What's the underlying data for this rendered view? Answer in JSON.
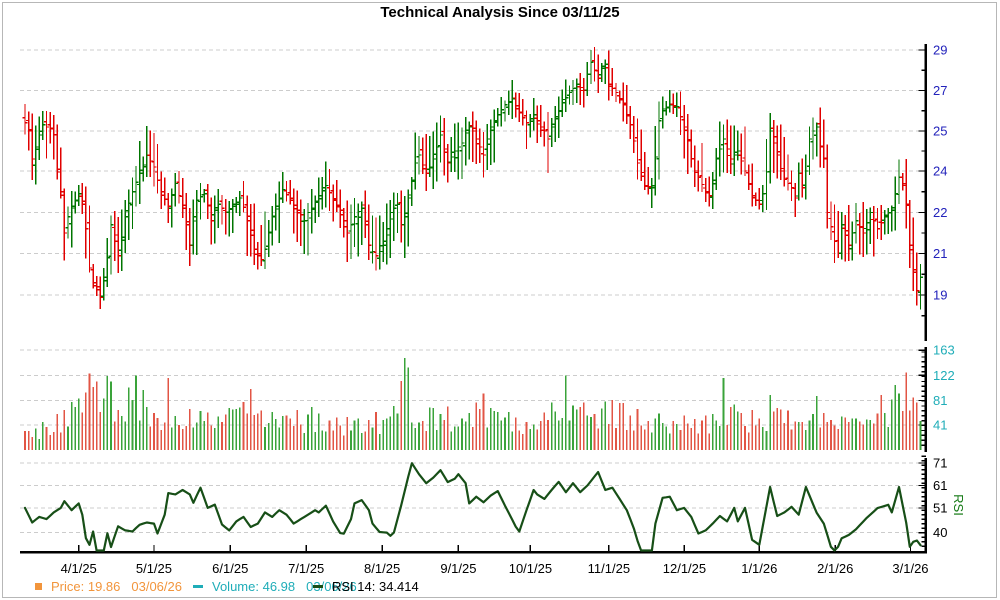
{
  "title": "Technical Analysis Since 03/11/25",
  "legend": {
    "price": {
      "text": "Price: 19.86",
      "date": "03/06/26"
    },
    "volume": {
      "text": "Volume: 46.98",
      "date": "03/06/26"
    },
    "rsi": {
      "text": "RSI 14: 34.414"
    }
  },
  "colors": {
    "price_up": "#007500",
    "price_down": "#e00000",
    "volume_up": "#3aa33a",
    "volume_down": "#e25545",
    "rsi_line": "#174f17",
    "price_axis_text": "#2222bb",
    "volume_axis_text": "#1fadb8",
    "rsi_axis_text": "#000000",
    "rsi_axis_title": "#157a15",
    "legend_price": "#f2953c",
    "legend_volume": "#1fadb8",
    "legend_rsi": "#000000",
    "grid": "#cccccc",
    "axis": "#000000"
  },
  "chart_data": {
    "type": "ohlc+volume+rsi",
    "title": "Technical Analysis Since 03/11/25",
    "start_date": "03/11/25",
    "end_date": "03/06/26",
    "bars_count": 251,
    "noise_seed": 11,
    "x_axis": {
      "labels": [
        {
          "text": "4/1/25",
          "day": 15
        },
        {
          "text": "5/1/25",
          "day": 36
        },
        {
          "text": "6/1/25",
          "day": 57.3
        },
        {
          "text": "7/1/25",
          "day": 78.5
        },
        {
          "text": "8/1/25",
          "day": 99.7
        },
        {
          "text": "9/1/25",
          "day": 121
        },
        {
          "text": "10/1/25",
          "day": 141.1
        },
        {
          "text": "11/1/25",
          "day": 163
        },
        {
          "text": "12/1/25",
          "day": 184.1
        },
        {
          "text": "1/1/26",
          "day": 205
        },
        {
          "text": "2/1/26",
          "day": 226.2
        },
        {
          "text": "3/1/26",
          "day": 247.2
        }
      ]
    },
    "price_panel": {
      "type": "ohlc",
      "y_ticks": [
        29,
        27,
        25,
        24,
        22,
        21,
        19
      ],
      "last_close": 19.86,
      "close_keypoints": [
        [
          0,
          25.4
        ],
        [
          1,
          25.0
        ],
        [
          2,
          24.3
        ],
        [
          4,
          24.9
        ],
        [
          5,
          25.3
        ],
        [
          7,
          25.1
        ],
        [
          8,
          24.9
        ],
        [
          10,
          23.0
        ],
        [
          11,
          21.5
        ],
        [
          13,
          22.3
        ],
        [
          15,
          22.9
        ],
        [
          16,
          22.4
        ],
        [
          17,
          21.6
        ],
        [
          18,
          20.3
        ],
        [
          19,
          19.6
        ],
        [
          21,
          18.9
        ],
        [
          23,
          20.8
        ],
        [
          24,
          21.7
        ],
        [
          26,
          20.9
        ],
        [
          28,
          21.9
        ],
        [
          30,
          23.0
        ],
        [
          32,
          23.9
        ],
        [
          34,
          24.4
        ],
        [
          36,
          24.1
        ],
        [
          38,
          23.0
        ],
        [
          40,
          22.3
        ],
        [
          42,
          23.4
        ],
        [
          44,
          22.2
        ],
        [
          46,
          21.2
        ],
        [
          48,
          22.6
        ],
        [
          50,
          22.9
        ],
        [
          52,
          21.8
        ],
        [
          54,
          22.4
        ],
        [
          56,
          22.0
        ],
        [
          58,
          22.3
        ],
        [
          60,
          22.7
        ],
        [
          62,
          21.8
        ],
        [
          64,
          21.1
        ],
        [
          66,
          20.7
        ],
        [
          68,
          21.5
        ],
        [
          70,
          22.3
        ],
        [
          72,
          23.1
        ],
        [
          74,
          22.6
        ],
        [
          76,
          22.1
        ],
        [
          78,
          21.8
        ],
        [
          80,
          22.2
        ],
        [
          82,
          22.8
        ],
        [
          84,
          23.3
        ],
        [
          86,
          22.6
        ],
        [
          88,
          22.1
        ],
        [
          90,
          21.5
        ],
        [
          92,
          21.9
        ],
        [
          94,
          22.2
        ],
        [
          96,
          21.2
        ],
        [
          98,
          20.9
        ],
        [
          100,
          21.2
        ],
        [
          102,
          22.0
        ],
        [
          104,
          22.4
        ],
        [
          105,
          21.7
        ],
        [
          106,
          21.9
        ],
        [
          108,
          23.5
        ],
        [
          109,
          24.2
        ],
        [
          110,
          24.4
        ],
        [
          112,
          23.9
        ],
        [
          114,
          24.3
        ],
        [
          116,
          24.9
        ],
        [
          118,
          24.2
        ],
        [
          120,
          24.5
        ],
        [
          122,
          24.7
        ],
        [
          124,
          25.2
        ],
        [
          126,
          24.8
        ],
        [
          128,
          24.4
        ],
        [
          130,
          25.2
        ],
        [
          132,
          25.8
        ],
        [
          134,
          26.3
        ],
        [
          136,
          26.6
        ],
        [
          138,
          25.9
        ],
        [
          140,
          25.4
        ],
        [
          142,
          25.8
        ],
        [
          144,
          25.2
        ],
        [
          146,
          24.8
        ],
        [
          148,
          25.6
        ],
        [
          150,
          26.4
        ],
        [
          152,
          26.9
        ],
        [
          154,
          27.3
        ],
        [
          156,
          27.0
        ],
        [
          157,
          27.8
        ],
        [
          158,
          28.4
        ],
        [
          159,
          28.0
        ],
        [
          160,
          27.6
        ],
        [
          161,
          28.1
        ],
        [
          162,
          28.3
        ],
        [
          163,
          27.3
        ],
        [
          165,
          26.9
        ],
        [
          167,
          26.3
        ],
        [
          169,
          25.3
        ],
        [
          171,
          24.2
        ],
        [
          173,
          23.3
        ],
        [
          175,
          23.2
        ],
        [
          177,
          25.5
        ],
        [
          178,
          26.0
        ],
        [
          180,
          26.3
        ],
        [
          182,
          26.2
        ],
        [
          184,
          25.2
        ],
        [
          186,
          24.3
        ],
        [
          188,
          23.7
        ],
        [
          190,
          23.0
        ],
        [
          191,
          22.8
        ],
        [
          193,
          24.3
        ],
        [
          195,
          24.8
        ],
        [
          197,
          24.3
        ],
        [
          199,
          24.5
        ],
        [
          201,
          24.0
        ],
        [
          203,
          22.8
        ],
        [
          205,
          22.4
        ],
        [
          206,
          22.9
        ],
        [
          208,
          25.0
        ],
        [
          210,
          24.4
        ],
        [
          212,
          23.6
        ],
        [
          214,
          23.2
        ],
        [
          215,
          22.7
        ],
        [
          216,
          23.9
        ],
        [
          217,
          23.2
        ],
        [
          219,
          24.8
        ],
        [
          221,
          25.2
        ],
        [
          222,
          24.6
        ],
        [
          223,
          24.3
        ],
        [
          224,
          22.0
        ],
        [
          226,
          21.3
        ],
        [
          227,
          21.0
        ],
        [
          228,
          21.7
        ],
        [
          230,
          21.2
        ],
        [
          232,
          21.8
        ],
        [
          234,
          21.5
        ],
        [
          236,
          22.0
        ],
        [
          238,
          21.6
        ],
        [
          240,
          21.9
        ],
        [
          242,
          22.1
        ],
        [
          244,
          23.7
        ],
        [
          245,
          23.3
        ],
        [
          246,
          22.4
        ],
        [
          247,
          21.2
        ],
        [
          248,
          20.1
        ],
        [
          249,
          19.2
        ],
        [
          250,
          19.86
        ]
      ]
    },
    "volume_panel": {
      "type": "bar",
      "y_ticks": [
        163,
        122,
        81,
        41
      ],
      "last_volume": 46.98,
      "base_keypoints": [
        [
          0,
          28
        ],
        [
          8,
          40
        ],
        [
          14,
          70
        ],
        [
          17,
          100
        ],
        [
          22,
          105
        ],
        [
          26,
          55
        ],
        [
          30,
          85
        ],
        [
          34,
          70
        ],
        [
          38,
          55
        ],
        [
          44,
          65
        ],
        [
          50,
          48
        ],
        [
          56,
          52
        ],
        [
          62,
          68
        ],
        [
          68,
          45
        ],
        [
          75,
          48
        ],
        [
          82,
          55
        ],
        [
          88,
          42
        ],
        [
          95,
          45
        ],
        [
          100,
          52
        ],
        [
          104,
          60
        ],
        [
          106,
          110
        ],
        [
          109,
          70
        ],
        [
          114,
          52
        ],
        [
          120,
          55
        ],
        [
          126,
          60
        ],
        [
          132,
          58
        ],
        [
          138,
          52
        ],
        [
          144,
          55
        ],
        [
          150,
          70
        ],
        [
          156,
          60
        ],
        [
          162,
          62
        ],
        [
          168,
          55
        ],
        [
          174,
          48
        ],
        [
          180,
          42
        ],
        [
          186,
          45
        ],
        [
          192,
          48
        ],
        [
          195,
          70
        ],
        [
          200,
          50
        ],
        [
          206,
          45
        ],
        [
          212,
          52
        ],
        [
          218,
          55
        ],
        [
          224,
          42
        ],
        [
          230,
          38
        ],
        [
          236,
          45
        ],
        [
          241,
          60
        ],
        [
          244,
          85
        ],
        [
          247,
          90
        ],
        [
          250,
          55
        ]
      ],
      "spikes": [
        [
          18,
          125
        ],
        [
          20,
          112
        ],
        [
          23,
          121
        ],
        [
          31,
          122
        ],
        [
          33,
          98
        ],
        [
          40,
          118
        ],
        [
          63,
          100
        ],
        [
          106,
          163
        ],
        [
          107,
          135
        ],
        [
          128,
          92
        ],
        [
          151,
          122
        ],
        [
          195,
          118
        ],
        [
          208,
          90
        ],
        [
          221,
          88
        ],
        [
          239,
          90
        ],
        [
          243,
          106
        ],
        [
          246,
          127
        ],
        [
          248,
          86
        ],
        [
          250,
          46.98
        ]
      ]
    },
    "rsi_panel": {
      "type": "line",
      "label": "RSI",
      "period": 14,
      "y_ticks": [
        71,
        61,
        51,
        40
      ],
      "last_value": 34.414,
      "keypoints": [
        [
          0,
          51
        ],
        [
          2,
          44.5
        ],
        [
          4,
          47
        ],
        [
          6,
          46
        ],
        [
          8,
          49
        ],
        [
          10,
          51
        ],
        [
          11,
          54
        ],
        [
          13,
          50
        ],
        [
          15,
          53
        ],
        [
          16,
          48
        ],
        [
          17,
          37.5
        ],
        [
          18,
          34.6
        ],
        [
          19,
          40.5
        ],
        [
          20,
          31.5
        ],
        [
          22,
          30.5
        ],
        [
          23,
          39.7
        ],
        [
          24,
          33.6
        ],
        [
          26,
          42.8
        ],
        [
          28,
          41
        ],
        [
          30,
          40.5
        ],
        [
          32,
          43.5
        ],
        [
          34,
          44.5
        ],
        [
          36,
          44
        ],
        [
          37,
          39.6
        ],
        [
          39,
          48
        ],
        [
          40,
          57.6
        ],
        [
          42,
          57
        ],
        [
          44,
          59
        ],
        [
          46,
          57
        ],
        [
          47,
          53.3
        ],
        [
          49,
          60
        ],
        [
          51,
          51
        ],
        [
          53,
          52.5
        ],
        [
          55,
          43.6
        ],
        [
          57,
          41
        ],
        [
          59,
          45
        ],
        [
          61,
          47
        ],
        [
          63,
          42.5
        ],
        [
          65,
          44
        ],
        [
          67,
          49
        ],
        [
          69,
          47
        ],
        [
          71,
          50
        ],
        [
          73,
          48
        ],
        [
          75,
          44
        ],
        [
          77,
          46
        ],
        [
          79,
          48
        ],
        [
          81,
          50
        ],
        [
          82,
          49
        ],
        [
          84,
          52
        ],
        [
          86,
          45
        ],
        [
          88,
          39.8
        ],
        [
          89,
          39.5
        ],
        [
          91,
          46
        ],
        [
          92,
          53
        ],
        [
          94,
          54.5
        ],
        [
          96,
          50
        ],
        [
          97,
          44
        ],
        [
          99,
          40.3
        ],
        [
          101,
          40
        ],
        [
          102,
          38.6
        ],
        [
          103,
          40
        ],
        [
          105,
          52
        ],
        [
          107,
          65
        ],
        [
          108,
          70.9
        ],
        [
          110,
          66
        ],
        [
          112,
          62
        ],
        [
          114,
          64.5
        ],
        [
          116,
          67.8
        ],
        [
          118,
          62.5
        ],
        [
          120,
          64
        ],
        [
          121,
          66
        ],
        [
          123,
          62
        ],
        [
          124,
          53
        ],
        [
          126,
          56
        ],
        [
          128,
          53.5
        ],
        [
          130,
          56.5
        ],
        [
          132,
          58.5
        ],
        [
          134,
          52
        ],
        [
          137,
          42.7
        ],
        [
          138,
          40.5
        ],
        [
          140,
          50
        ],
        [
          142,
          59
        ],
        [
          143,
          57
        ],
        [
          145,
          55
        ],
        [
          147,
          59
        ],
        [
          149,
          62.6
        ],
        [
          151,
          58
        ],
        [
          153,
          62
        ],
        [
          155,
          58
        ],
        [
          157,
          61
        ],
        [
          160,
          67
        ],
        [
          162,
          59
        ],
        [
          164,
          60
        ],
        [
          166,
          55
        ],
        [
          168,
          50
        ],
        [
          170,
          41.8
        ],
        [
          172,
          31
        ],
        [
          174,
          30.8
        ],
        [
          175,
          31.5
        ],
        [
          176,
          44
        ],
        [
          178,
          55.5
        ],
        [
          180,
          56
        ],
        [
          182,
          50
        ],
        [
          184,
          51
        ],
        [
          186,
          47
        ],
        [
          188,
          39.6
        ],
        [
          190,
          41
        ],
        [
          192,
          44
        ],
        [
          194,
          47.4
        ],
        [
          196,
          45
        ],
        [
          198,
          51
        ],
        [
          199,
          45
        ],
        [
          201,
          51
        ],
        [
          203,
          36.8
        ],
        [
          205,
          34.6
        ],
        [
          208,
          60.3
        ],
        [
          210,
          47.4
        ],
        [
          212,
          49
        ],
        [
          214,
          51.5
        ],
        [
          216,
          48
        ],
        [
          218,
          60.3
        ],
        [
          221,
          48.9
        ],
        [
          223,
          44
        ],
        [
          225,
          33.7
        ],
        [
          226,
          30
        ],
        [
          228,
          37.5
        ],
        [
          230,
          39
        ],
        [
          232,
          41.5
        ],
        [
          235,
          46.6
        ],
        [
          238,
          50.9
        ],
        [
          241,
          52.4
        ],
        [
          242,
          49
        ],
        [
          244,
          60.3
        ],
        [
          246,
          44.4
        ],
        [
          247,
          33.7
        ],
        [
          248,
          35.9
        ],
        [
          249,
          36.5
        ],
        [
          250,
          34.414
        ]
      ]
    }
  }
}
